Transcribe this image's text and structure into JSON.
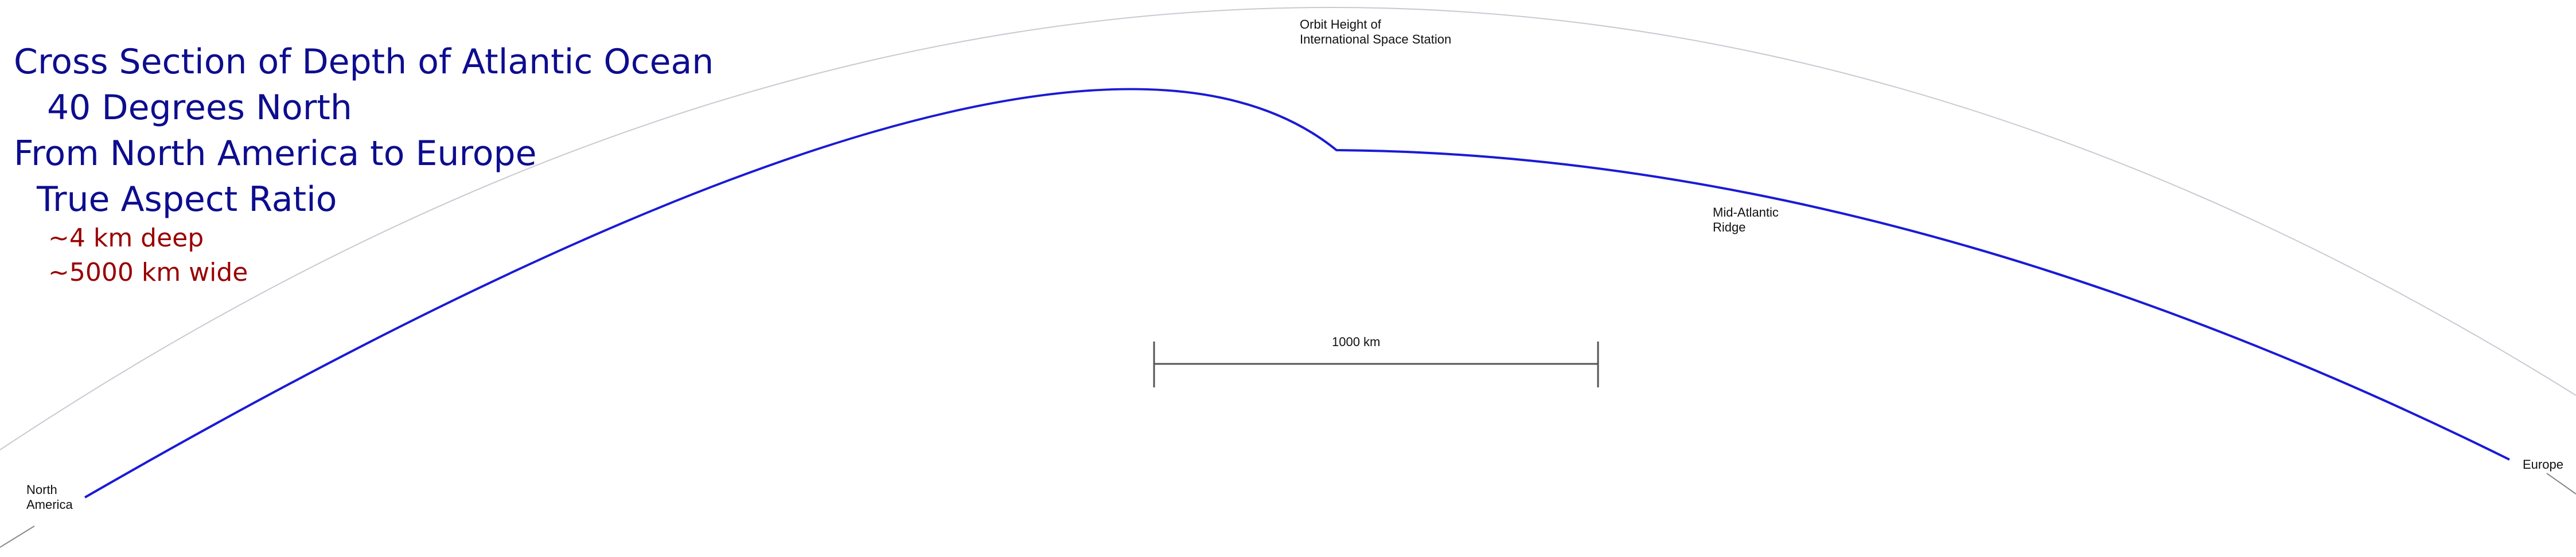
{
  "title": {
    "line1": "Cross Section of Depth of Atlantic Ocean",
    "line2": "40 Degrees North",
    "line3": "From North America to Europe",
    "line4": "True Aspect Ratio"
  },
  "notes": {
    "depth": "~4 km deep",
    "width": "~5000 km wide"
  },
  "labels": {
    "orbit_line1": "Orbit Height of",
    "orbit_line2": "International Space Station",
    "ridge_line1": "Mid-Atlantic",
    "ridge_line2": "Ridge",
    "north_line1": "North",
    "north_line2": "America",
    "europe": "Europe",
    "scale": "1000 km"
  },
  "colors": {
    "title": "#0d0d8f",
    "notes": "#990000",
    "ocean_profile": "#1a1ad6",
    "orbit_arc": "#c9c9d2",
    "scale_bar": "#555555"
  }
}
